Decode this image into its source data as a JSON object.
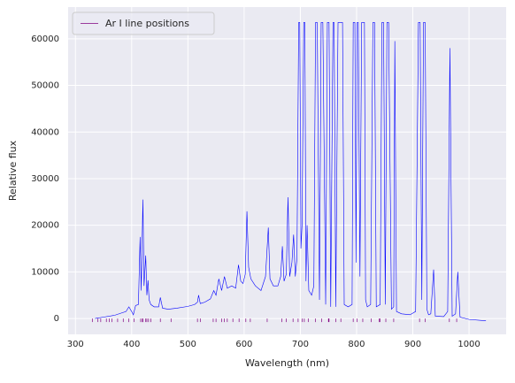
{
  "chart_data": {
    "type": "line",
    "xlabel": "Wavelength (nm)",
    "ylabel": "Relative flux",
    "xlim": [
      287,
      1066
    ],
    "ylim": [
      -3400,
      66800
    ],
    "xticks": [
      300,
      400,
      500,
      600,
      700,
      800,
      900,
      1000
    ],
    "yticks": [
      0,
      10000,
      20000,
      30000,
      40000,
      50000,
      60000
    ],
    "grid": true,
    "legend": "upper left",
    "color": "#0000ff",
    "x": [
      335,
      350,
      370,
      390,
      395,
      400,
      403,
      407,
      412,
      415,
      417,
      420,
      422,
      425,
      427,
      429,
      431,
      434,
      440,
      448,
      451,
      455,
      465,
      480,
      500,
      512,
      517,
      519,
      522,
      530,
      540,
      546,
      550,
      555,
      560,
      565,
      570,
      578,
      585,
      590,
      594,
      598,
      602,
      605,
      608,
      612,
      620,
      630,
      638,
      643,
      646,
      652,
      660,
      665,
      668,
      671,
      675,
      678,
      681,
      685,
      688,
      691,
      694,
      697,
      699,
      701,
      703,
      706,
      708,
      710,
      712,
      715,
      720,
      724,
      727,
      730,
      734,
      737,
      740,
      745,
      748,
      751,
      754,
      758,
      760,
      763,
      767,
      772,
      775,
      778,
      785,
      792,
      794,
      797,
      799,
      801,
      803,
      806,
      809,
      811,
      814,
      816,
      819,
      825,
      829,
      832,
      835,
      842,
      845,
      848,
      851,
      854,
      857,
      862,
      866,
      868,
      871,
      880,
      895,
      905,
      910,
      913,
      916,
      919,
      922,
      925,
      928,
      932,
      937,
      940,
      955,
      962,
      966,
      970,
      976,
      980,
      984,
      1000,
      1030
    ],
    "values": [
      0,
      300,
      700,
      1500,
      2500,
      1500,
      800,
      2800,
      3000,
      17500,
      6000,
      25500,
      7000,
      13500,
      5000,
      8200,
      4000,
      3000,
      2500,
      2500,
      4500,
      2200,
      2000,
      2200,
      2600,
      3000,
      3500,
      5000,
      3200,
      3500,
      4200,
      6000,
      5000,
      8500,
      6000,
      9000,
      6500,
      7000,
      6500,
      11500,
      8000,
      7500,
      9500,
      23000,
      11000,
      8500,
      7000,
      6000,
      9000,
      19500,
      8500,
      7000,
      7000,
      9000,
      15500,
      8000,
      9500,
      26000,
      9000,
      12000,
      18000,
      9000,
      13000,
      63500,
      63500,
      15000,
      20000,
      63500,
      63500,
      8000,
      20000,
      6000,
      5000,
      7000,
      63500,
      63500,
      4000,
      63500,
      63500,
      3000,
      63500,
      63500,
      2500,
      63500,
      63500,
      2500,
      63500,
      63500,
      63500,
      3000,
      2500,
      3000,
      63500,
      63500,
      12000,
      63500,
      63500,
      9000,
      63500,
      63500,
      63500,
      4000,
      2500,
      3000,
      63500,
      63500,
      2500,
      3000,
      63500,
      63500,
      3000,
      63500,
      63500,
      2000,
      2500,
      59500,
      1500,
      1000,
      800,
      1500,
      63500,
      63500,
      4000,
      63500,
      63500,
      2000,
      800,
      1000,
      10500,
      500,
      400,
      1500,
      58000,
      500,
      1000,
      10000,
      300,
      -200,
      -500
    ],
    "lines": {
      "name": "Ar I line positions",
      "color": "#800080",
      "x": [
        330,
        340,
        345,
        355,
        360,
        365,
        375,
        385,
        395,
        404,
        416,
        419,
        420,
        425,
        427,
        430,
        434,
        451,
        470,
        517,
        522,
        545,
        550,
        560,
        565,
        570,
        580,
        591,
        603,
        611,
        641,
        667,
        675,
        687,
        696,
        703,
        707,
        714,
        727,
        738,
        750,
        751,
        763,
        772,
        794,
        801,
        811,
        826,
        840,
        842,
        852,
        866,
        912,
        922,
        965,
        978
      ]
    }
  }
}
